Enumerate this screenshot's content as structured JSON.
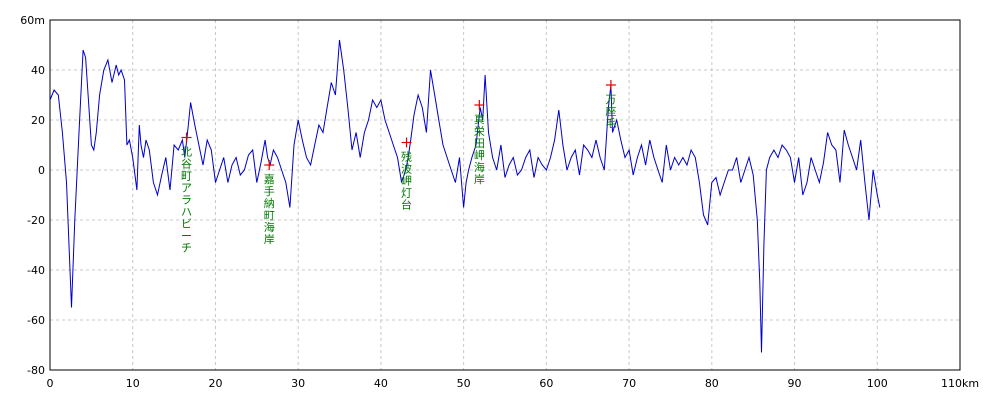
{
  "chart_data": {
    "type": "line",
    "title": "",
    "xlabel": "",
    "ylabel": "",
    "x_unit": "km",
    "y_unit": "m",
    "xlim": [
      0,
      110
    ],
    "ylim": [
      -80,
      60
    ],
    "x_ticks": [
      0,
      10,
      20,
      30,
      40,
      50,
      60,
      70,
      80,
      90,
      100,
      110
    ],
    "y_ticks": [
      60,
      40,
      20,
      0,
      -20,
      -40,
      -60,
      -80
    ],
    "grid": true,
    "line_color": "#0000cc",
    "grid_color": "#c8c8c8",
    "marker_color": "#e00000",
    "label_color": "#007a00",
    "series": [
      {
        "x": [
          0,
          0.5,
          1,
          1.5,
          2,
          2.3,
          2.6,
          3,
          3.5,
          4,
          4.3,
          4.6,
          5,
          5.3,
          5.6,
          6,
          6.5,
          7,
          7.5,
          8,
          8.3,
          8.6,
          9,
          9.3,
          9.6,
          10,
          10.5,
          10.8,
          11,
          11.3,
          11.6,
          12,
          12.5,
          13,
          13.5,
          14,
          14.5,
          15,
          15.5,
          16,
          16.3,
          16.6,
          17,
          17.5,
          18,
          18.5,
          19,
          19.5,
          20,
          20.5,
          21,
          21.5,
          22,
          22.5,
          23,
          23.5,
          24,
          24.5,
          25,
          25.5,
          26,
          26.3,
          26.6,
          27,
          27.5,
          28,
          28.5,
          29,
          29.5,
          30,
          30.5,
          31,
          31.5,
          32,
          32.5,
          33,
          33.5,
          34,
          34.5,
          35,
          35.5,
          36,
          36.5,
          37,
          37.5,
          38,
          38.5,
          39,
          39.5,
          40,
          40.5,
          41,
          41.5,
          42,
          42.5,
          43,
          43.3,
          43.6,
          44,
          44.5,
          45,
          45.5,
          46,
          46.5,
          47,
          47.5,
          48,
          48.5,
          49,
          49.5,
          50,
          50.3,
          50.6,
          51,
          51.5,
          52,
          52.3,
          52.6,
          53,
          53.5,
          54,
          54.5,
          55,
          55.5,
          56,
          56.5,
          57,
          57.5,
          58,
          58.5,
          59,
          59.5,
          60,
          60.5,
          61,
          61.5,
          62,
          62.5,
          63,
          63.5,
          64,
          64.5,
          65,
          65.5,
          66,
          66.5,
          67,
          67.5,
          67.8,
          68,
          68.5,
          69,
          69.5,
          70,
          70.5,
          71,
          71.5,
          72,
          72.5,
          73,
          73.5,
          74,
          74.5,
          75,
          75.5,
          76,
          76.5,
          77,
          77.5,
          78,
          78.5,
          79,
          79.5,
          80,
          80.5,
          81,
          81.5,
          82,
          82.5,
          83,
          83.5,
          84,
          84.5,
          85,
          85.5,
          85.8,
          86,
          86.3,
          86.6,
          87,
          87.5,
          88,
          88.5,
          89,
          89.5,
          90,
          90.5,
          91,
          91.5,
          92,
          92.5,
          93,
          93.5,
          94,
          94.5,
          95,
          95.5,
          96,
          96.5,
          97,
          97.5,
          98,
          98.5,
          99,
          99.5,
          100,
          100.3
        ],
        "y": [
          28,
          32,
          30,
          15,
          -5,
          -30,
          -55,
          -20,
          15,
          48,
          45,
          30,
          10,
          8,
          15,
          30,
          40,
          44,
          35,
          42,
          38,
          40,
          36,
          10,
          12,
          5,
          -8,
          18,
          10,
          5,
          12,
          8,
          -5,
          -10,
          -2,
          5,
          -8,
          10,
          8,
          12,
          5,
          14,
          27,
          18,
          10,
          2,
          12,
          8,
          -5,
          0,
          5,
          -5,
          2,
          5,
          -2,
          0,
          6,
          8,
          -5,
          3,
          12,
          5,
          2,
          8,
          5,
          0,
          -5,
          -15,
          10,
          20,
          12,
          5,
          2,
          10,
          18,
          15,
          25,
          35,
          30,
          52,
          40,
          25,
          8,
          15,
          5,
          15,
          20,
          28,
          25,
          28,
          20,
          15,
          10,
          5,
          -5,
          0,
          5,
          12,
          22,
          30,
          25,
          15,
          40,
          30,
          20,
          10,
          5,
          0,
          -5,
          5,
          -15,
          -5,
          0,
          5,
          10,
          25,
          20,
          38,
          15,
          5,
          0,
          10,
          -3,
          2,
          5,
          -2,
          0,
          5,
          8,
          -3,
          5,
          2,
          0,
          5,
          12,
          24,
          10,
          0,
          5,
          8,
          -2,
          10,
          8,
          5,
          12,
          5,
          0,
          25,
          34,
          15,
          20,
          12,
          5,
          8,
          -2,
          5,
          10,
          2,
          12,
          5,
          0,
          -5,
          10,
          0,
          5,
          2,
          5,
          2,
          8,
          5,
          -5,
          -18,
          -22,
          -5,
          -3,
          -10,
          -5,
          0,
          0,
          5,
          -5,
          0,
          5,
          -2,
          -20,
          -45,
          -73,
          -30,
          0,
          5,
          8,
          5,
          10,
          8,
          5,
          -5,
          5,
          -10,
          -5,
          5,
          0,
          -5,
          3,
          15,
          10,
          8,
          -5,
          16,
          10,
          5,
          0,
          12,
          -5,
          -20,
          0,
          -10,
          -15
        ]
      }
    ],
    "landmarks": [
      {
        "name": "北谷町アラハビーチ",
        "x": 16.5,
        "y": 13
      },
      {
        "name": "嘉手納町海岸",
        "x": 26.5,
        "y": 2
      },
      {
        "name": "残波岬灯台",
        "x": 43.1,
        "y": 11
      },
      {
        "name": "真栄田岬海岸",
        "x": 51.9,
        "y": 26
      },
      {
        "name": "万座毛",
        "x": 67.8,
        "y": 34
      }
    ]
  }
}
